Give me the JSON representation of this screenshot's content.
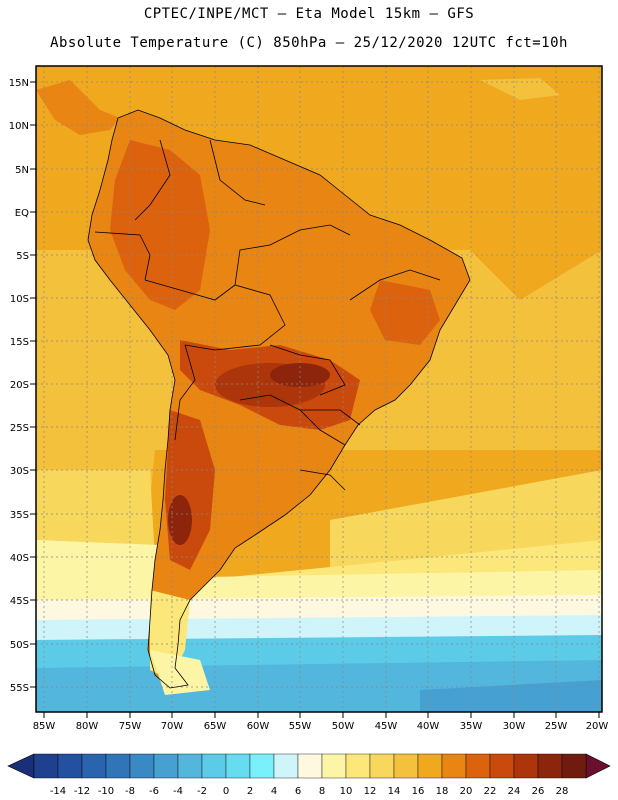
{
  "header": {
    "line1": "CPTEC/INPE/MCT –  Eta Model 15km – GFS",
    "line2": "Absolute Temperature (C) 850hPa – 25/12/2020 12UTC fct=10h"
  },
  "map": {
    "lat_labels": [
      "15N",
      "10N",
      "5N",
      "EQ",
      "5S",
      "10S",
      "15S",
      "20S",
      "25S",
      "30S",
      "35S",
      "40S",
      "45S",
      "50S",
      "55S"
    ],
    "lon_labels": [
      "85W",
      "80W",
      "75W",
      "70W",
      "65W",
      "60W",
      "55W",
      "50W",
      "45W",
      "40W",
      "35W",
      "30W",
      "25W",
      "20W"
    ]
  },
  "colorbar": {
    "labels": [
      "-14",
      "-12",
      "-10",
      "-8",
      "-6",
      "-4",
      "-2",
      "0",
      "2",
      "4",
      "6",
      "8",
      "10",
      "12",
      "14",
      "16",
      "18",
      "20",
      "22",
      "24",
      "26",
      "28"
    ],
    "colors": [
      "#1f3f8f",
      "#24519f",
      "#2a63ae",
      "#3075b8",
      "#3a88c4",
      "#46a0d2",
      "#52b6dd",
      "#5ccbe8",
      "#66dcf0",
      "#7af0fa",
      "#cff5fb",
      "#fff8e0",
      "#fdf5a6",
      "#fbe77a",
      "#f7d75c",
      "#f4c13c",
      "#f0a81e",
      "#e98512",
      "#dc620e",
      "#c94a0c",
      "#ad350c",
      "#8c250c",
      "#6f1b10"
    ],
    "low_arrow_color": "#1a2f78",
    "high_arrow_color": "#6a0f2e"
  }
}
